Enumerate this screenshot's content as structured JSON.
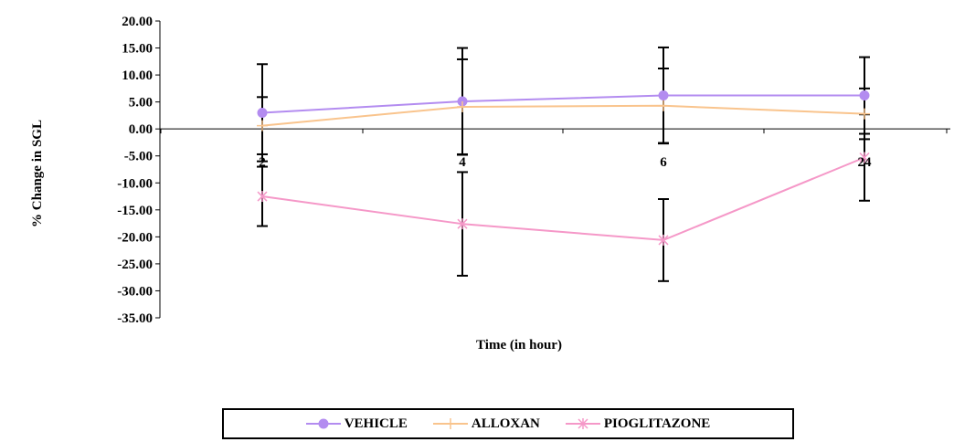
{
  "chart_data": {
    "type": "line",
    "title": "",
    "xlabel": "Time (in hour)",
    "ylabel": "% Change in SGL",
    "categories": [
      "2",
      "4",
      "6",
      "24"
    ],
    "ylim": [
      -35,
      20
    ],
    "ytick_step": 5,
    "yticks": [
      "20.00",
      "15.00",
      "10.00",
      "5.00",
      "0.00",
      "-5.00",
      "-10.00",
      "-15.00",
      "-20.00",
      "-25.00",
      "-30.00",
      "-35.00"
    ],
    "grid": false,
    "legend_position": "bottom",
    "series": [
      {
        "name": "VEHICLE",
        "color": "#b38cf0",
        "marker": "circle",
        "values": [
          3.0,
          5.1,
          6.2,
          6.2
        ],
        "errors": [
          9.0,
          9.9,
          8.9,
          7.1
        ]
      },
      {
        "name": "ALLOXAN",
        "color": "#f9c48d",
        "marker": "plus",
        "values": [
          0.6,
          4.1,
          4.3,
          2.8
        ],
        "errors": [
          5.3,
          8.8,
          6.9,
          4.7
        ]
      },
      {
        "name": "PIOGLITAZONE",
        "color": "#f598c8",
        "marker": "star",
        "values": [
          -12.5,
          -17.6,
          -20.6,
          -5.3
        ],
        "errors": [
          5.5,
          9.6,
          7.6,
          8.0
        ]
      }
    ]
  }
}
